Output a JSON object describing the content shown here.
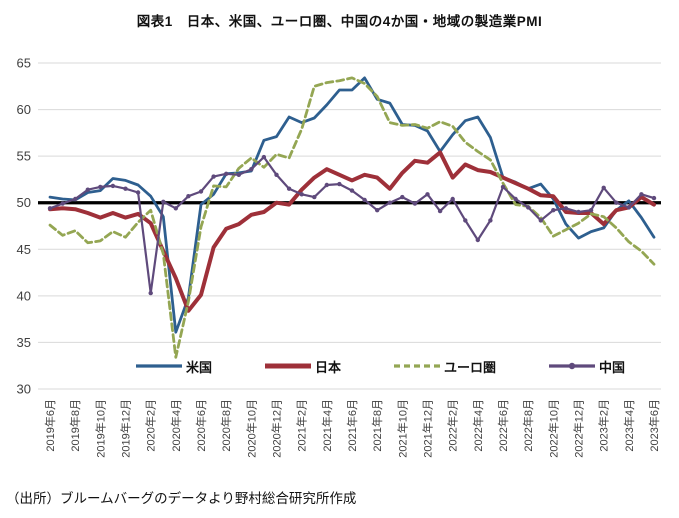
{
  "header": {
    "title": "図表1　日本、米国、ユーロ圏、中国の4か国・地域の製造業PMI"
  },
  "footer": {
    "source": "（出所）ブルームバーグのデータより野村総合研究所作成"
  },
  "colors": {
    "background": "#ffffff",
    "grid": "#d9d9d9",
    "axis_text": "#404040",
    "reference_line": "#000000",
    "us_blue": "#2e5f8f",
    "japan_red": "#9e3039",
    "eurozone_olive": "#94a653",
    "china_purple": "#5f4a7c"
  },
  "chart_data": {
    "type": "line",
    "title": "図表1　日本、米国、ユーロ圏、中国の4か国・地域の製造業PMI",
    "xlabel": "",
    "ylabel": "",
    "ylim": [
      30,
      65
    ],
    "ytick_step": 5,
    "ytick_labels": [
      "30",
      "35",
      "40",
      "45",
      "50",
      "55",
      "60",
      "65"
    ],
    "grid": "horizontal",
    "legend_position": "bottom-inside",
    "reference_line": {
      "value": 50,
      "color": "#000000",
      "width": 3.2
    },
    "points_per_tick": 2,
    "x_tick_labels": [
      "2019年6月",
      "2019年8月",
      "2019年10月",
      "2019年12月",
      "2020年2月",
      "2020年4月",
      "2020年6月",
      "2020年8月",
      "2020年10月",
      "2020年12月",
      "2021年2月",
      "2021年4月",
      "2021年6月",
      "2021年8月",
      "2021年10月",
      "2021年12月",
      "2022年2月",
      "2022年4月",
      "2022年6月",
      "2022年8月",
      "2022年10月",
      "2022年12月",
      "2023年2月",
      "2023年4月",
      "2023年6月"
    ],
    "series": [
      {
        "id": "us",
        "name": "米国",
        "color": "#2e5f8f",
        "style": "solid",
        "width": 2.8,
        "values": [
          50.6,
          50.4,
          50.3,
          51.1,
          51.3,
          52.6,
          52.4,
          51.9,
          50.7,
          48.5,
          36.1,
          39.8,
          49.8,
          50.9,
          53.1,
          53.2,
          53.4,
          56.7,
          57.1,
          59.2,
          58.6,
          59.1,
          60.5,
          62.1,
          62.1,
          63.4,
          61.1,
          60.7,
          58.4,
          58.3,
          57.7,
          55.5,
          57.3,
          58.8,
          59.2,
          57.0,
          52.7,
          52.2,
          51.5,
          52.0,
          50.4,
          47.7,
          46.2,
          46.9,
          47.3,
          49.2,
          50.2,
          48.4,
          46.3
        ]
      },
      {
        "id": "japan",
        "name": "日本",
        "color": "#9e3039",
        "style": "solid",
        "width": 4,
        "values": [
          49.3,
          49.4,
          49.3,
          48.9,
          48.4,
          48.9,
          48.4,
          48.8,
          47.8,
          44.8,
          41.9,
          38.4,
          40.1,
          45.2,
          47.2,
          47.7,
          48.7,
          49.0,
          50.0,
          49.8,
          51.4,
          52.7,
          53.6,
          53.0,
          52.4,
          53.0,
          52.7,
          51.5,
          53.2,
          54.5,
          54.3,
          55.4,
          52.7,
          54.1,
          53.5,
          53.3,
          52.7,
          52.1,
          51.5,
          50.8,
          50.7,
          49.0,
          48.9,
          48.9,
          47.7,
          49.2,
          49.5,
          50.6,
          49.8
        ]
      },
      {
        "id": "eurozone",
        "name": "ユーロ圏",
        "color": "#94a653",
        "style": "dashed",
        "width": 2.8,
        "values": [
          47.6,
          46.5,
          47.0,
          45.7,
          45.9,
          46.9,
          46.3,
          47.9,
          49.2,
          44.5,
          33.4,
          39.4,
          47.4,
          51.8,
          51.7,
          53.7,
          54.8,
          53.8,
          55.2,
          54.8,
          57.9,
          62.5,
          62.9,
          63.1,
          63.4,
          62.8,
          61.4,
          58.6,
          58.3,
          58.4,
          58.0,
          58.7,
          58.2,
          56.5,
          55.5,
          54.6,
          52.1,
          49.8,
          49.6,
          48.4,
          46.4,
          47.1,
          47.8,
          48.8,
          48.5,
          47.3,
          45.8,
          44.8,
          43.4
        ]
      },
      {
        "id": "china",
        "name": "中国",
        "color": "#5f4a7c",
        "style": "solid-markers",
        "width": 2.2,
        "values": [
          49.4,
          49.9,
          50.4,
          51.4,
          51.7,
          51.8,
          51.5,
          51.1,
          40.3,
          50.1,
          49.4,
          50.7,
          51.2,
          52.8,
          53.1,
          53.0,
          53.6,
          54.9,
          53.0,
          51.5,
          50.9,
          50.6,
          51.9,
          52.0,
          51.3,
          50.3,
          49.2,
          50.0,
          50.6,
          49.9,
          50.9,
          49.1,
          50.4,
          48.1,
          46.0,
          48.1,
          51.7,
          50.4,
          49.5,
          48.1,
          49.2,
          49.4,
          49.0,
          49.2,
          51.6,
          50.0,
          49.5,
          50.9,
          50.5
        ]
      }
    ]
  }
}
